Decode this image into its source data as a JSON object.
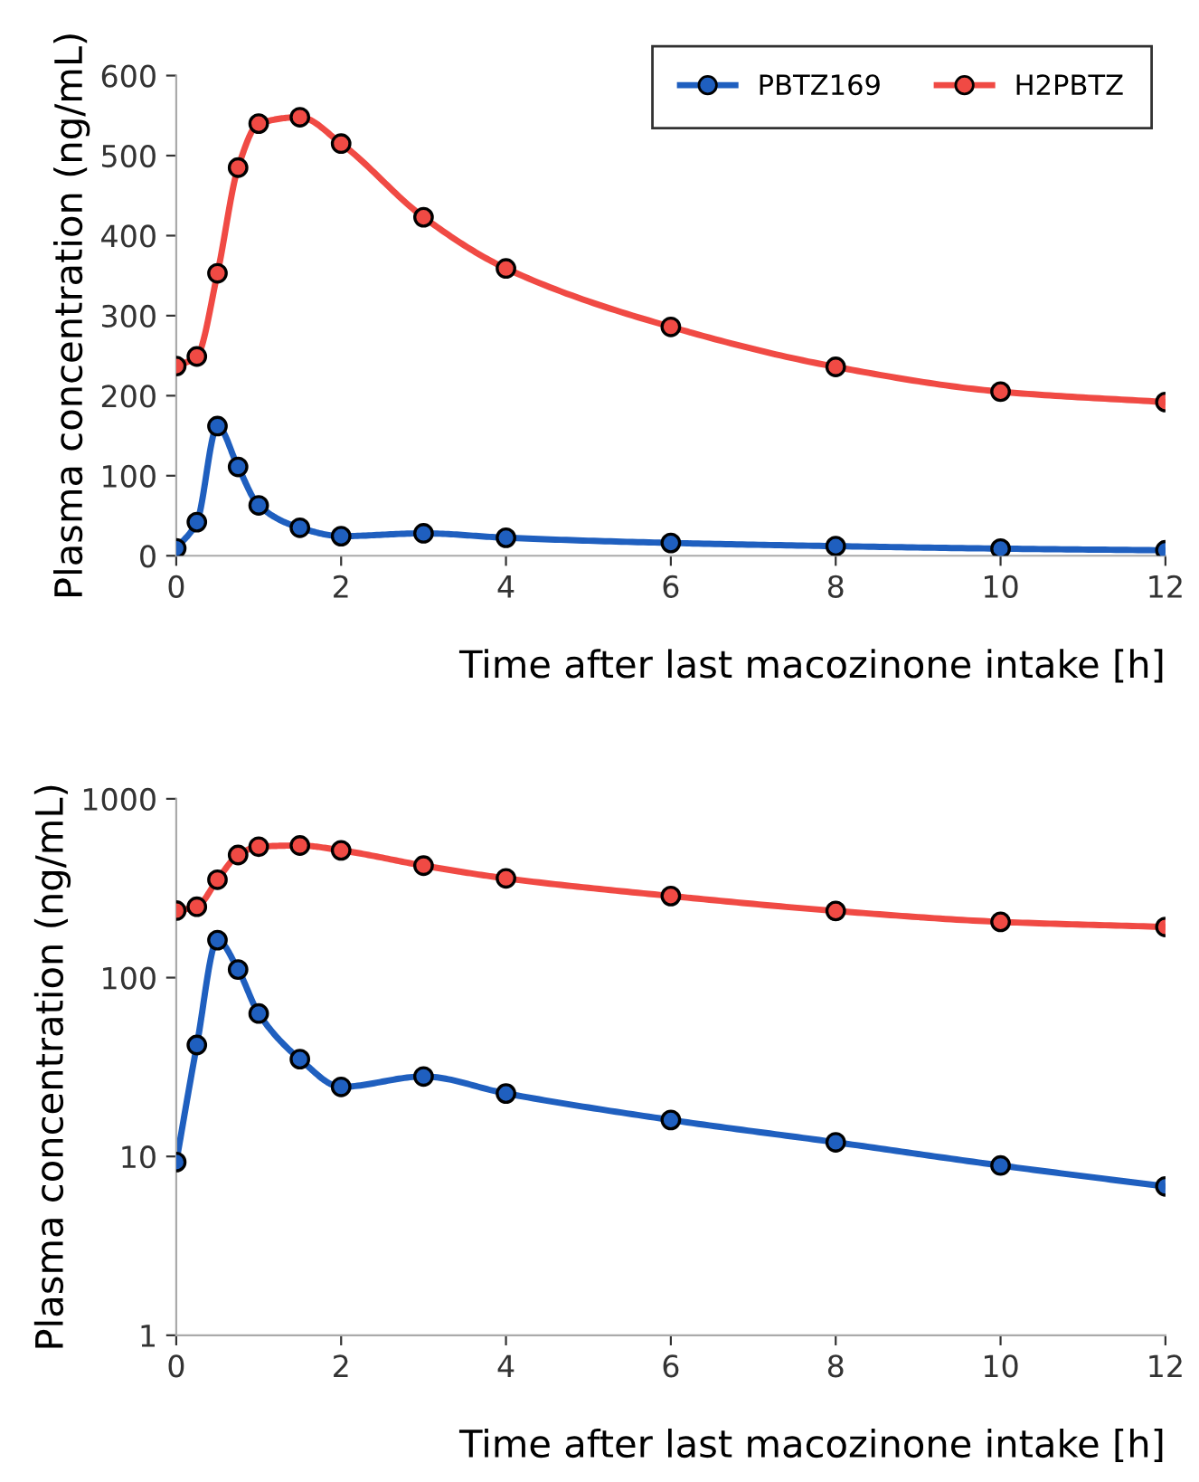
{
  "chart_data": [
    {
      "type": "line",
      "xlabel": "Time after last macozinone intake [h]",
      "ylabel": "Plasma concentration (ng/mL)",
      "x": [
        0,
        0.25,
        0.5,
        0.75,
        1,
        1.5,
        2,
        3,
        4,
        6,
        8,
        10,
        12
      ],
      "xlim": [
        0,
        12
      ],
      "xticks": [
        0,
        2,
        4,
        6,
        8,
        10,
        12
      ],
      "ylim": [
        0,
        600
      ],
      "yticks": [
        0,
        100,
        200,
        300,
        400,
        500,
        600
      ],
      "marker": "circle",
      "line_style": "solid",
      "grid": false,
      "legend": "top right",
      "series": [
        {
          "name": "PBTZ169",
          "color": "#1f5fbf",
          "values": [
            9.3,
            42,
            162,
            111,
            63,
            35,
            24.5,
            28,
            22.5,
            16,
            12,
            8.9,
            6.8
          ]
        },
        {
          "name": "H2PBTZ",
          "color": "#f04a44",
          "values": [
            237,
            249,
            353,
            485,
            540,
            548,
            515,
            423,
            359,
            286,
            236,
            205,
            192
          ]
        }
      ]
    },
    {
      "type": "line",
      "xlabel": "Time after last macozinone intake [h]",
      "ylabel": "Plasma concentration (ng/mL)",
      "x": [
        0,
        0.25,
        0.5,
        0.75,
        1,
        1.5,
        2,
        3,
        4,
        6,
        8,
        10,
        12
      ],
      "xlim": [
        0,
        12
      ],
      "xticks": [
        0,
        2,
        4,
        6,
        8,
        10,
        12
      ],
      "ylim": [
        1,
        1000
      ],
      "yticks": [
        1,
        10,
        100,
        1000
      ],
      "log": "y",
      "marker": "circle",
      "line_style": "solid",
      "grid": false,
      "legend": false,
      "series": [
        {
          "color": "#1f5fbf",
          "values": [
            9.3,
            42,
            162,
            111,
            63,
            35,
            24.5,
            28,
            22.5,
            16,
            12,
            8.9,
            6.8
          ]
        },
        {
          "color": "#f04a44",
          "values": [
            237,
            249,
            353,
            485,
            540,
            548,
            515,
            423,
            359,
            286,
            236,
            205,
            192
          ]
        }
      ]
    }
  ]
}
